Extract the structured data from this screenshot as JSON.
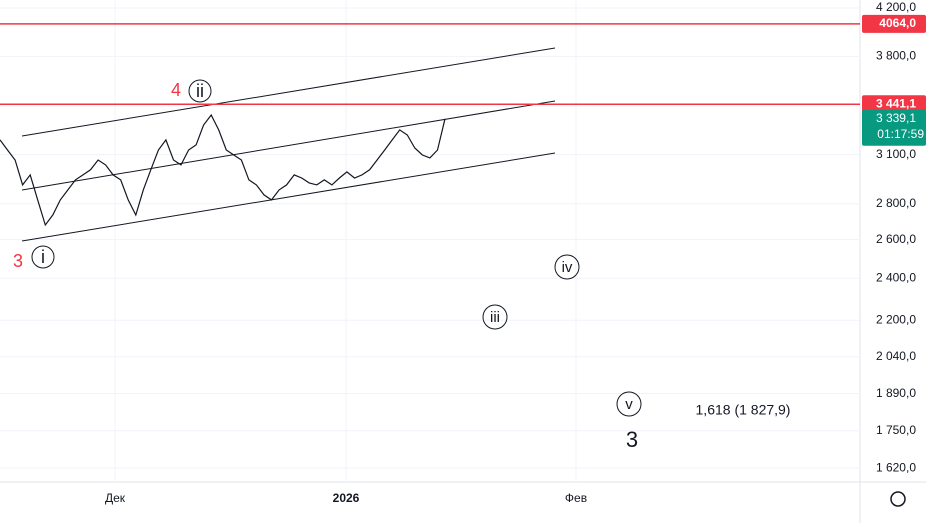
{
  "chart_data": {
    "type": "line",
    "log_scale": true,
    "grid": true,
    "ylim": [
      1574,
      4270
    ],
    "yticks": [
      {
        "value": 4200,
        "label": "4 200,0"
      },
      {
        "value": 3800,
        "label": "3 800,0"
      },
      {
        "value": 3100,
        "label": "3 100,0"
      },
      {
        "value": 2800,
        "label": "2 800,0"
      },
      {
        "value": 2600,
        "label": "2 600,0"
      },
      {
        "value": 2400,
        "label": "2 400,0"
      },
      {
        "value": 2200,
        "label": "2 200,0"
      },
      {
        "value": 2040,
        "label": "2 040,0"
      },
      {
        "value": 1890,
        "label": "1 890,0"
      },
      {
        "value": 1750,
        "label": "1 750,0"
      },
      {
        "value": 1620,
        "label": "1 620,0"
      }
    ],
    "xtick_labels": [
      "Дек",
      "2026",
      "Фев"
    ],
    "series": [
      {
        "color": "#131722",
        "values": [
          3196,
          3130,
          3066,
          2912,
          2973,
          2823,
          2680,
          2736,
          2823,
          2882,
          2942,
          2973,
          3004,
          3066,
          3035,
          2973,
          2942,
          2823,
          2736,
          2882,
          3004,
          3130,
          3196,
          3066,
          3035,
          3130,
          3163,
          3296,
          3365,
          3263,
          3130,
          3098,
          3066,
          2942,
          2912,
          2852,
          2823,
          2882,
          2912,
          2973,
          2954,
          2924,
          2912,
          2942,
          2912,
          2954,
          2991,
          2954,
          2973,
          3004,
          3066,
          3130,
          3196,
          3263,
          3229,
          3143,
          3098,
          3079,
          3130,
          3339.1
        ]
      }
    ],
    "hlines": [
      {
        "value": 4064.0,
        "label": "4064,0",
        "color": "#f23645"
      },
      {
        "value": 3441.1,
        "label": "3 441,1",
        "color": "#f23645"
      }
    ],
    "last_price": {
      "value": 3339.1,
      "label": "3 339,1",
      "color": "#089981"
    },
    "countdown": "01:17:59",
    "annotations": [
      "4",
      "ii",
      "3",
      "i",
      "iv",
      "iii",
      "v",
      "3",
      "1,618 (1 827,9)"
    ]
  }
}
